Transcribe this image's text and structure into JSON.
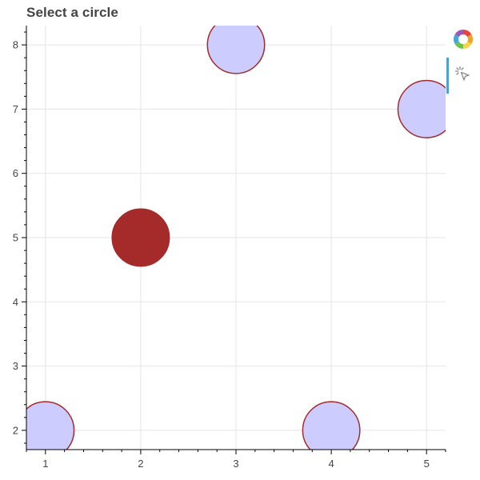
{
  "title": "Select a circle",
  "toolbar": {
    "logo_icon": "bokeh-logo-icon",
    "tool_icon": "tap-select-icon",
    "active_color": "#4ea0d7"
  },
  "colors": {
    "fill_unselected": "#ccccff",
    "line": "#a52a2a",
    "fill_selected": "#a52a2a",
    "grid": "#e5e5e5",
    "text": "#444444"
  },
  "chart_data": {
    "type": "scatter",
    "title": "Select a circle",
    "x": [
      1,
      2,
      3,
      4,
      5
    ],
    "y": [
      2,
      5,
      8,
      2,
      7
    ],
    "selected_index": 1,
    "xlim": [
      0.8,
      5.2
    ],
    "ylim": [
      1.7,
      8.3
    ],
    "x_ticks": [
      1,
      2,
      3,
      4,
      5
    ],
    "y_ticks": [
      2,
      3,
      4,
      5,
      6,
      7,
      8
    ],
    "x_tick_labels": [
      "1",
      "2",
      "3",
      "4",
      "5"
    ],
    "y_tick_labels": [
      "2",
      "3",
      "4",
      "5",
      "6",
      "7",
      "8"
    ],
    "grid": true,
    "marker_size": 0.3
  }
}
